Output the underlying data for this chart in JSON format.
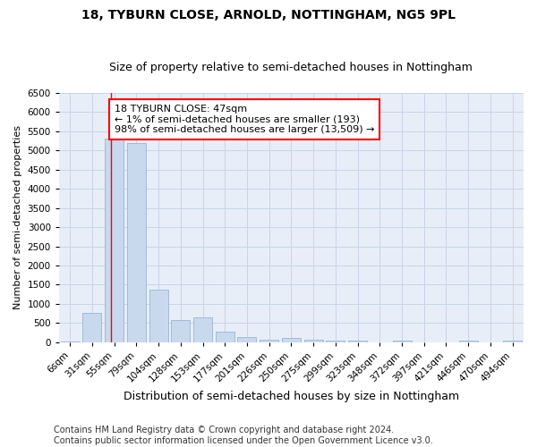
{
  "title_line1": "18, TYBURN CLOSE, ARNOLD, NOTTINGHAM, NG5 9PL",
  "title_line2": "Size of property relative to semi-detached houses in Nottingham",
  "xlabel": "Distribution of semi-detached houses by size in Nottingham",
  "ylabel": "Number of semi-detached properties",
  "categories": [
    "6sqm",
    "31sqm",
    "55sqm",
    "79sqm",
    "104sqm",
    "128sqm",
    "153sqm",
    "177sqm",
    "201sqm",
    "226sqm",
    "250sqm",
    "275sqm",
    "299sqm",
    "323sqm",
    "348sqm",
    "372sqm",
    "397sqm",
    "421sqm",
    "446sqm",
    "470sqm",
    "494sqm"
  ],
  "values": [
    25,
    770,
    5300,
    5200,
    1380,
    580,
    640,
    270,
    140,
    55,
    100,
    60,
    50,
    40,
    0,
    50,
    0,
    0,
    50,
    0,
    30
  ],
  "bar_color": "#c8d9ee",
  "bar_edge_color": "#9ab4d4",
  "property_line_x": 1.85,
  "annotation_text_line1": "18 TYBURN CLOSE: 47sqm",
  "annotation_text_line2": "← 1% of semi-detached houses are smaller (193)",
  "annotation_text_line3": "98% of semi-detached houses are larger (13,509) →",
  "annotation_box_color": "white",
  "annotation_box_edge": "red",
  "vline_color": "red",
  "ylim": [
    0,
    6500
  ],
  "yticks": [
    0,
    500,
    1000,
    1500,
    2000,
    2500,
    3000,
    3500,
    4000,
    4500,
    5000,
    5500,
    6000,
    6500
  ],
  "grid_color": "#c8d4e8",
  "background_color": "#e8eef8",
  "footer_line1": "Contains HM Land Registry data © Crown copyright and database right 2024.",
  "footer_line2": "Contains public sector information licensed under the Open Government Licence v3.0.",
  "title_fontsize": 10,
  "subtitle_fontsize": 9,
  "ylabel_fontsize": 8,
  "xlabel_fontsize": 9,
  "tick_fontsize": 7.5,
  "annotation_fontsize": 8,
  "footer_fontsize": 7
}
